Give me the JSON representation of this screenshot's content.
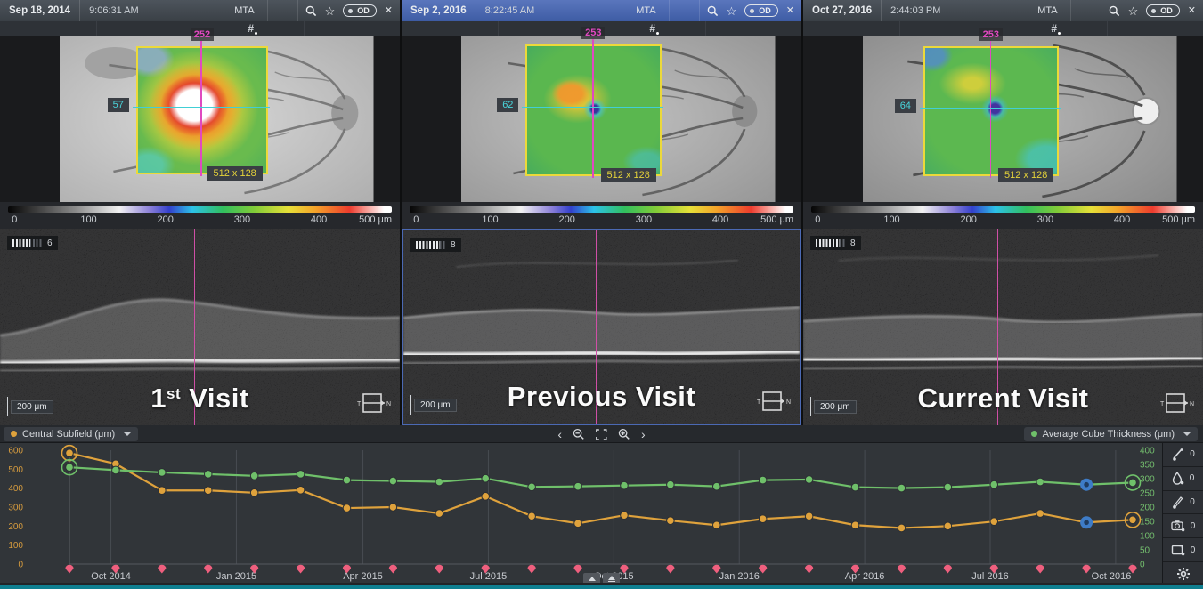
{
  "panels": [
    {
      "header": {
        "date": "Sep 18, 2014",
        "time": "9:06:31 AM",
        "tag": "MTA",
        "eye": "OD",
        "close": "✕",
        "star": "☆"
      },
      "map": {
        "v_slice": "252",
        "h_slice": "57",
        "scan_size": "512 x 128"
      },
      "bscan": {
        "index": "6",
        "scale": "200 μm",
        "orient_left": "T",
        "orient_right": "N"
      },
      "visit": {
        "prefix": "1",
        "sup": "st",
        "rest": " Visit"
      }
    },
    {
      "header": {
        "date": "Sep 2, 2016",
        "time": "8:22:45 AM",
        "tag": "MTA",
        "eye": "OD",
        "close": "✕",
        "star": "☆"
      },
      "map": {
        "v_slice": "253",
        "h_slice": "62",
        "scan_size": "512 x 128"
      },
      "bscan": {
        "index": "8",
        "scale": "200 μm",
        "orient_left": "T",
        "orient_right": "N"
      },
      "visit": {
        "prefix": "",
        "sup": "",
        "rest": "Previous Visit"
      }
    },
    {
      "header": {
        "date": "Oct 27, 2016",
        "time": "2:44:03 PM",
        "tag": "MTA",
        "eye": "OD",
        "close": "✕",
        "star": "☆"
      },
      "map": {
        "v_slice": "253",
        "h_slice": "64",
        "scan_size": "512 x 128"
      },
      "bscan": {
        "index": "8",
        "scale": "200 μm",
        "orient_left": "T",
        "orient_right": "N"
      },
      "visit": {
        "prefix": "",
        "sup": "",
        "rest": "Current Visit"
      }
    }
  ],
  "colorbar": {
    "ticks": [
      "0",
      "100",
      "200",
      "300",
      "400",
      "500 μm"
    ]
  },
  "legend": {
    "left": "Central Subfield (μm)",
    "right": "Average Cube Thickness (μm)"
  },
  "controls": {
    "prev": "‹",
    "next": "›"
  },
  "side_toolbar": {
    "items": [
      {
        "name": "measure-tool",
        "count": "0"
      },
      {
        "name": "droplet-tool",
        "count": "0"
      },
      {
        "name": "pen-tool",
        "count": "0"
      },
      {
        "name": "camera-tool",
        "count": "0"
      },
      {
        "name": "frame-tool",
        "count": "0"
      },
      {
        "name": "settings",
        "count": ""
      }
    ]
  },
  "chart_data": {
    "type": "line",
    "title": "",
    "x_ticks": [
      {
        "label": "Oct 2014",
        "f": 0.039
      },
      {
        "label": "Jan 2015",
        "f": 0.157
      },
      {
        "label": "Apr 2015",
        "f": 0.276
      },
      {
        "label": "Jul 2015",
        "f": 0.394
      },
      {
        "label": "Oct 2015",
        "f": 0.512
      },
      {
        "label": "Jan 2016",
        "f": 0.63
      },
      {
        "label": "Apr 2016",
        "f": 0.748
      },
      {
        "label": "Jul 2016",
        "f": 0.866
      },
      {
        "label": "Oct 2016",
        "f": 0.984
      }
    ],
    "left_axis": {
      "label": "Central Subfield (μm)",
      "color": "#d79c3e",
      "min": 0,
      "max": 600,
      "ticks": [
        600,
        500,
        400,
        300,
        200,
        100,
        0
      ]
    },
    "right_axis": {
      "label": "Average Cube Thickness (μm)",
      "color": "#74bf6e",
      "min": 0,
      "max": 400,
      "ticks": [
        400,
        350,
        300,
        250,
        200,
        150,
        100,
        50,
        0
      ]
    },
    "series": [
      {
        "name": "Central Subfield (μm)",
        "axis": "left",
        "color": "#dfa23c",
        "values": [
          585,
          528,
          388,
          388,
          376,
          390,
          295,
          300,
          267,
          357,
          252,
          214,
          257,
          229,
          205,
          238,
          252,
          205,
          190,
          200,
          224,
          267,
          219,
          233
        ]
      },
      {
        "name": "Average Cube Thickness (μm)",
        "axis": "right",
        "color": "#6fc06a",
        "values": [
          340,
          330,
          322,
          316,
          310,
          316,
          295,
          292,
          289,
          301,
          271,
          273,
          276,
          279,
          273,
          295,
          297,
          270,
          267,
          270,
          279,
          289,
          279,
          286
        ]
      }
    ],
    "highlights": {
      "first_visit_ring_index": 0,
      "selected_blue_index": 22,
      "current_ring_index": 23,
      "blue_color": "#3e7cc7"
    },
    "visit_marker_color": "#ef5f7e",
    "grid": true,
    "legend_position": "top"
  }
}
